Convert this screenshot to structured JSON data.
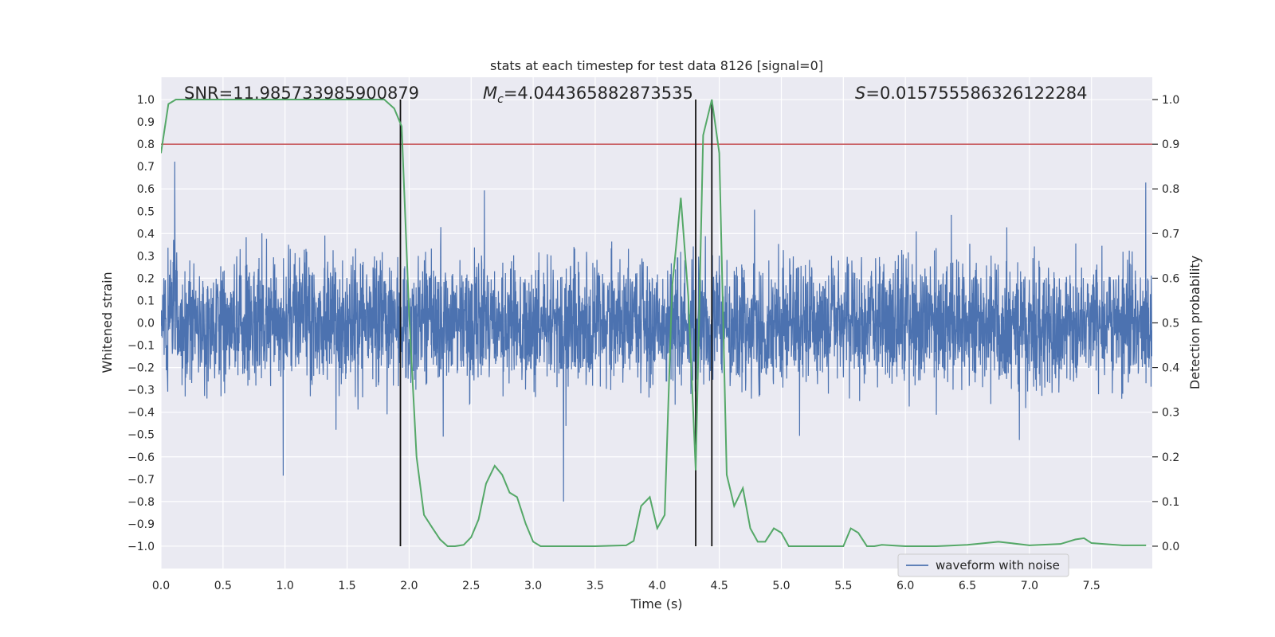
{
  "chart_data": {
    "type": "line",
    "title": "stats at each timestep for test data 8126 [signal=0]",
    "xlabel": "Time (s)",
    "ylabel_left": "Whitened strain",
    "ylabel_right": "Detection probability",
    "xlim": [
      0.0,
      7.99
    ],
    "ylim_left": [
      -1.1,
      1.1
    ],
    "ylim_right": [
      -0.05,
      1.05
    ],
    "x_ticks": [
      "0.0",
      "0.5",
      "1.0",
      "1.5",
      "2.0",
      "2.5",
      "3.0",
      "3.5",
      "4.0",
      "4.5",
      "5.0",
      "5.5",
      "6.0",
      "6.5",
      "7.0",
      "7.5"
    ],
    "x_tick_values": [
      0.0,
      0.5,
      1.0,
      1.5,
      2.0,
      2.5,
      3.0,
      3.5,
      4.0,
      4.5,
      5.0,
      5.5,
      6.0,
      6.5,
      7.0,
      7.5
    ],
    "y_left_ticks": [
      "1.0",
      "0.9",
      "0.8",
      "0.7",
      "0.6",
      "0.5",
      "0.4",
      "0.3",
      "0.2",
      "0.1",
      "0.0",
      "−0.1",
      "−0.2",
      "−0.3",
      "−0.4",
      "−0.5",
      "−0.6",
      "−0.7",
      "−0.8",
      "−0.9",
      "−1.0"
    ],
    "y_left_tick_values": [
      1.0,
      0.9,
      0.8,
      0.7,
      0.6,
      0.5,
      0.4,
      0.3,
      0.2,
      0.1,
      0.0,
      -0.1,
      -0.2,
      -0.3,
      -0.4,
      -0.5,
      -0.6,
      -0.7,
      -0.8,
      -0.9,
      -1.0
    ],
    "y_right_ticks": [
      "1.0",
      "0.9",
      "0.8",
      "0.7",
      "0.6",
      "0.5",
      "0.4",
      "0.3",
      "0.2",
      "0.1",
      "0.0"
    ],
    "y_right_tick_values": [
      1.0,
      0.9,
      0.8,
      0.7,
      0.6,
      0.5,
      0.4,
      0.3,
      0.2,
      0.1,
      0.0
    ],
    "annotations": {
      "snr": "SNR=11.985733985900879",
      "mc_symbol": "M",
      "mc_sub": "c",
      "mc_value": "=4.044365882873535",
      "s_symbol": "S",
      "s_value": "=0.015755586326122284"
    },
    "threshold": 0.9,
    "vertical_lines": [
      1.93,
      4.31,
      4.44
    ],
    "legend": {
      "label": "waveform with noise",
      "location": "lower-right"
    },
    "waveform": {
      "name": "waveform with noise",
      "seed": 8126,
      "n_samples": 4096,
      "envelope": 0.42,
      "color": "#4c72b0"
    },
    "probability_series": {
      "name": "detection probability",
      "color": "#55a868",
      "x": [
        0.0,
        0.06,
        0.12,
        0.3,
        0.6,
        0.9,
        1.2,
        1.5,
        1.8,
        1.88,
        1.94,
        2.0,
        2.06,
        2.12,
        2.19,
        2.25,
        2.31,
        2.37,
        2.44,
        2.5,
        2.56,
        2.62,
        2.69,
        2.75,
        2.81,
        2.87,
        2.94,
        3.0,
        3.06,
        3.12,
        3.25,
        3.5,
        3.75,
        3.81,
        3.87,
        3.94,
        4.0,
        4.06,
        4.12,
        4.19,
        4.25,
        4.31,
        4.37,
        4.44,
        4.5,
        4.56,
        4.62,
        4.69,
        4.75,
        4.81,
        4.87,
        4.94,
        5.0,
        5.06,
        5.25,
        5.5,
        5.56,
        5.62,
        5.69,
        5.75,
        5.81,
        6.0,
        6.25,
        6.5,
        6.75,
        7.0,
        7.25,
        7.37,
        7.44,
        7.5,
        7.75,
        7.94
      ],
      "values": [
        0.88,
        0.99,
        1.0,
        1.0,
        1.0,
        1.0,
        1.0,
        1.0,
        1.0,
        0.98,
        0.94,
        0.52,
        0.2,
        0.07,
        0.04,
        0.015,
        0.0,
        0.0,
        0.003,
        0.02,
        0.06,
        0.14,
        0.18,
        0.16,
        0.12,
        0.11,
        0.05,
        0.01,
        0.0,
        0.0,
        0.0,
        0.0,
        0.002,
        0.012,
        0.09,
        0.11,
        0.04,
        0.07,
        0.58,
        0.78,
        0.56,
        0.17,
        0.92,
        1.0,
        0.88,
        0.16,
        0.09,
        0.13,
        0.04,
        0.01,
        0.01,
        0.04,
        0.03,
        0.0,
        0.0,
        0.0,
        0.04,
        0.03,
        0.0,
        0.0,
        0.003,
        0.0,
        0.0,
        0.003,
        0.01,
        0.002,
        0.005,
        0.015,
        0.018,
        0.007,
        0.002,
        0.002
      ]
    }
  }
}
